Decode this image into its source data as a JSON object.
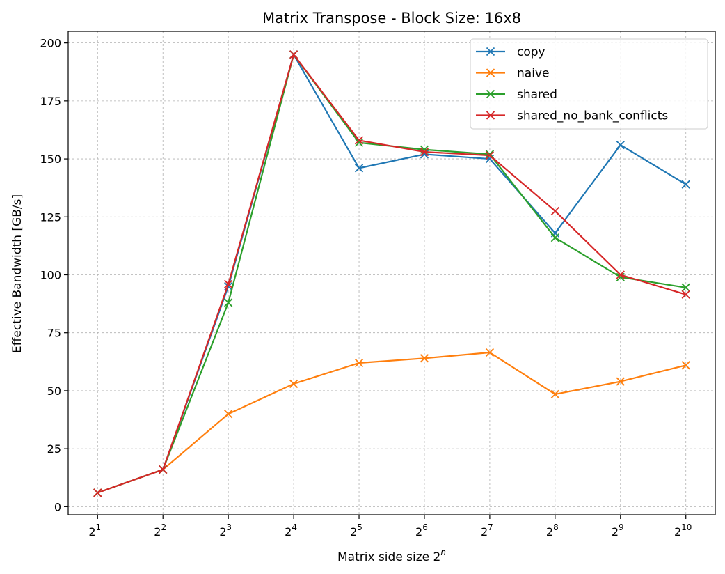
{
  "chart_data": {
    "type": "line",
    "title": "Matrix Transpose - Block Size: 16x8",
    "xlabel_base": "Matrix side size 2",
    "xlabel_sup": "n",
    "ylabel": "Effective Bandwidth [GB/s]",
    "x_exponents": [
      1,
      2,
      3,
      4,
      5,
      6,
      7,
      8,
      9,
      10
    ],
    "x_tick_base": "2",
    "y_ticks": [
      0,
      25,
      50,
      75,
      100,
      125,
      150,
      175,
      200
    ],
    "ylim": [
      -3.5,
      205
    ],
    "grid": true,
    "legend_position": "top-right",
    "marker": "x",
    "series": [
      {
        "name": "copy",
        "color": "#1f77b4",
        "values": [
          6,
          16,
          95,
          195,
          146,
          152,
          150,
          118,
          156,
          139
        ]
      },
      {
        "name": "naive",
        "color": "#ff7f0e",
        "values": [
          6,
          16,
          40,
          53,
          62,
          64,
          66.5,
          48.5,
          54,
          61
        ]
      },
      {
        "name": "shared",
        "color": "#2ca02c",
        "values": [
          6,
          16,
          88,
          195,
          157,
          154,
          152,
          116,
          99,
          94.5
        ]
      },
      {
        "name": "shared_no_bank_conflicts",
        "color": "#d62728",
        "values": [
          6,
          16,
          96,
          195,
          158,
          153,
          151.5,
          127.5,
          100,
          91.5
        ]
      }
    ]
  }
}
